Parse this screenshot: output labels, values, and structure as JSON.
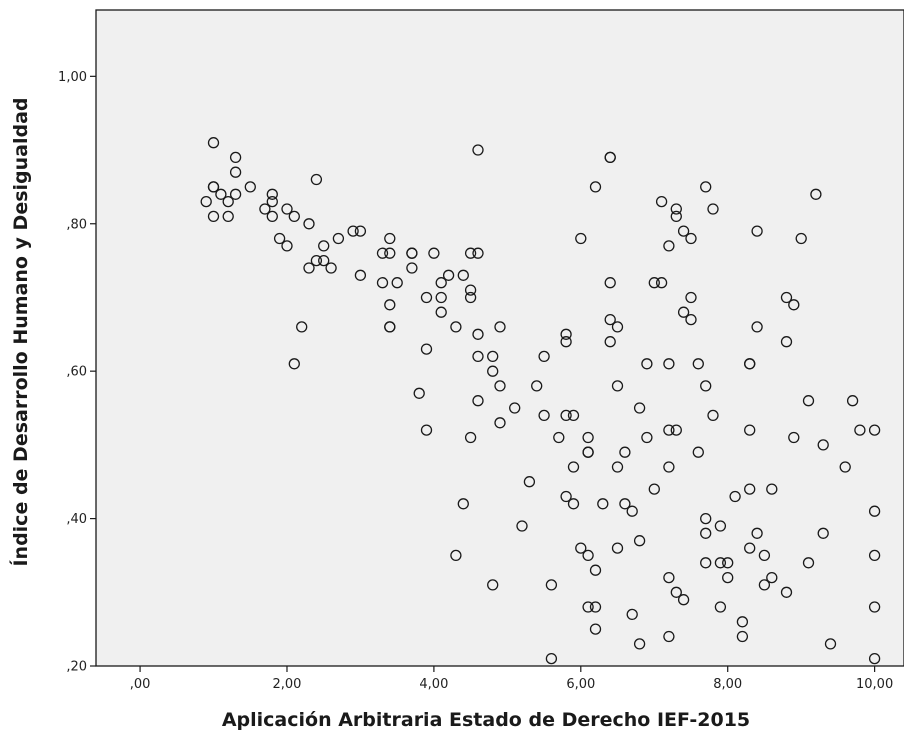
{
  "chart_data": {
    "type": "scatter",
    "xlabel": "Aplicación Arbitraria Estado de Derecho IEF-2015",
    "ylabel": "Índice de Desarrollo Humano y Desigualdad",
    "xlim": [
      -0.6,
      10.4
    ],
    "ylim": [
      0.2,
      1.09
    ],
    "x_ticks": [
      0,
      2,
      4,
      6,
      8,
      10
    ],
    "x_tick_labels": [
      ",00",
      "2,00",
      "4,00",
      "6,00",
      "8,00",
      "10,00"
    ],
    "y_ticks": [
      0.2,
      0.4,
      0.6,
      0.8,
      1.0
    ],
    "y_tick_labels": [
      ",20",
      ",40",
      ",60",
      ",80",
      "1,00"
    ],
    "background": "#f0f0f0",
    "marker_color": "#1a1a1a",
    "grid": false,
    "points": [
      [
        1.0,
        0.91
      ],
      [
        1.0,
        0.85
      ],
      [
        1.0,
        0.85
      ],
      [
        0.9,
        0.83
      ],
      [
        1.1,
        0.84
      ],
      [
        1.2,
        0.83
      ],
      [
        1.3,
        0.84
      ],
      [
        1.3,
        0.87
      ],
      [
        1.3,
        0.89
      ],
      [
        1.5,
        0.85
      ],
      [
        1.0,
        0.81
      ],
      [
        1.2,
        0.81
      ],
      [
        1.7,
        0.82
      ],
      [
        1.8,
        0.81
      ],
      [
        1.8,
        0.83
      ],
      [
        1.8,
        0.84
      ],
      [
        1.9,
        0.78
      ],
      [
        2.0,
        0.77
      ],
      [
        2.0,
        0.82
      ],
      [
        2.1,
        0.81
      ],
      [
        2.2,
        0.66
      ],
      [
        2.1,
        0.61
      ],
      [
        2.3,
        0.8
      ],
      [
        2.3,
        0.74
      ],
      [
        2.4,
        0.75
      ],
      [
        2.4,
        0.86
      ],
      [
        2.5,
        0.75
      ],
      [
        2.5,
        0.77
      ],
      [
        2.6,
        0.74
      ],
      [
        2.7,
        0.78
      ],
      [
        2.9,
        0.79
      ],
      [
        3.0,
        0.79
      ],
      [
        3.0,
        0.73
      ],
      [
        3.3,
        0.76
      ],
      [
        3.3,
        0.72
      ],
      [
        3.4,
        0.78
      ],
      [
        3.4,
        0.76
      ],
      [
        3.5,
        0.72
      ],
      [
        3.4,
        0.69
      ],
      [
        3.4,
        0.66
      ],
      [
        3.4,
        0.66
      ],
      [
        3.7,
        0.76
      ],
      [
        3.7,
        0.76
      ],
      [
        3.7,
        0.74
      ],
      [
        3.8,
        0.57
      ],
      [
        3.9,
        0.63
      ],
      [
        3.9,
        0.7
      ],
      [
        3.9,
        0.52
      ],
      [
        4.0,
        0.76
      ],
      [
        4.1,
        0.72
      ],
      [
        4.1,
        0.7
      ],
      [
        4.1,
        0.68
      ],
      [
        4.2,
        0.73
      ],
      [
        4.3,
        0.66
      ],
      [
        4.4,
        0.73
      ],
      [
        4.5,
        0.76
      ],
      [
        4.5,
        0.71
      ],
      [
        4.5,
        0.7
      ],
      [
        4.6,
        0.76
      ],
      [
        4.6,
        0.65
      ],
      [
        4.6,
        0.62
      ],
      [
        4.6,
        0.56
      ],
      [
        4.5,
        0.51
      ],
      [
        4.6,
        0.9
      ],
      [
        4.4,
        0.42
      ],
      [
        4.3,
        0.35
      ],
      [
        4.8,
        0.62
      ],
      [
        4.8,
        0.6
      ],
      [
        4.9,
        0.58
      ],
      [
        4.9,
        0.66
      ],
      [
        4.9,
        0.53
      ],
      [
        5.1,
        0.55
      ],
      [
        4.8,
        0.31
      ],
      [
        5.2,
        0.39
      ],
      [
        5.3,
        0.45
      ],
      [
        5.4,
        0.58
      ],
      [
        5.5,
        0.62
      ],
      [
        5.5,
        0.54
      ],
      [
        5.6,
        0.31
      ],
      [
        5.6,
        0.21
      ],
      [
        5.7,
        0.51
      ],
      [
        5.8,
        0.65
      ],
      [
        5.8,
        0.64
      ],
      [
        5.8,
        0.54
      ],
      [
        5.8,
        0.43
      ],
      [
        5.9,
        0.54
      ],
      [
        5.9,
        0.47
      ],
      [
        5.9,
        0.42
      ],
      [
        6.0,
        0.78
      ],
      [
        6.0,
        0.36
      ],
      [
        6.1,
        0.51
      ],
      [
        6.1,
        0.49
      ],
      [
        6.1,
        0.49
      ],
      [
        6.1,
        0.35
      ],
      [
        6.1,
        0.28
      ],
      [
        6.2,
        0.85
      ],
      [
        6.2,
        0.33
      ],
      [
        6.2,
        0.28
      ],
      [
        6.2,
        0.25
      ],
      [
        6.3,
        0.42
      ],
      [
        6.4,
        0.89
      ],
      [
        6.4,
        0.89
      ],
      [
        6.4,
        0.72
      ],
      [
        6.4,
        0.67
      ],
      [
        6.4,
        0.64
      ],
      [
        6.5,
        0.66
      ],
      [
        6.5,
        0.58
      ],
      [
        6.5,
        0.47
      ],
      [
        6.5,
        0.36
      ],
      [
        6.6,
        0.49
      ],
      [
        6.6,
        0.42
      ],
      [
        6.7,
        0.41
      ],
      [
        6.7,
        0.27
      ],
      [
        6.8,
        0.55
      ],
      [
        6.8,
        0.37
      ],
      [
        6.8,
        0.23
      ],
      [
        6.9,
        0.61
      ],
      [
        6.9,
        0.51
      ],
      [
        7.0,
        0.72
      ],
      [
        7.0,
        0.44
      ],
      [
        7.1,
        0.83
      ],
      [
        7.1,
        0.72
      ],
      [
        7.2,
        0.77
      ],
      [
        7.2,
        0.61
      ],
      [
        7.2,
        0.52
      ],
      [
        7.2,
        0.47
      ],
      [
        7.2,
        0.32
      ],
      [
        7.2,
        0.24
      ],
      [
        7.3,
        0.82
      ],
      [
        7.3,
        0.81
      ],
      [
        7.3,
        0.52
      ],
      [
        7.3,
        0.3
      ],
      [
        7.4,
        0.79
      ],
      [
        7.4,
        0.68
      ],
      [
        7.4,
        0.29
      ],
      [
        7.5,
        0.78
      ],
      [
        7.5,
        0.7
      ],
      [
        7.5,
        0.67
      ],
      [
        7.6,
        0.61
      ],
      [
        7.6,
        0.49
      ],
      [
        7.7,
        0.85
      ],
      [
        7.7,
        0.58
      ],
      [
        7.7,
        0.4
      ],
      [
        7.7,
        0.38
      ],
      [
        7.7,
        0.34
      ],
      [
        7.8,
        0.82
      ],
      [
        7.8,
        0.54
      ],
      [
        7.9,
        0.39
      ],
      [
        7.9,
        0.34
      ],
      [
        7.9,
        0.28
      ],
      [
        8.0,
        0.34
      ],
      [
        8.0,
        0.32
      ],
      [
        8.1,
        0.43
      ],
      [
        8.2,
        0.26
      ],
      [
        8.2,
        0.24
      ],
      [
        8.3,
        0.61
      ],
      [
        8.3,
        0.61
      ],
      [
        8.3,
        0.52
      ],
      [
        8.3,
        0.44
      ],
      [
        8.3,
        0.36
      ],
      [
        8.4,
        0.79
      ],
      [
        8.4,
        0.66
      ],
      [
        8.4,
        0.38
      ],
      [
        8.5,
        0.35
      ],
      [
        8.5,
        0.31
      ],
      [
        8.6,
        0.44
      ],
      [
        8.6,
        0.32
      ],
      [
        8.8,
        0.7
      ],
      [
        8.8,
        0.64
      ],
      [
        8.8,
        0.3
      ],
      [
        8.9,
        0.69
      ],
      [
        8.9,
        0.51
      ],
      [
        9.0,
        0.78
      ],
      [
        9.1,
        0.56
      ],
      [
        9.1,
        0.34
      ],
      [
        9.2,
        0.84
      ],
      [
        9.3,
        0.5
      ],
      [
        9.3,
        0.38
      ],
      [
        9.4,
        0.23
      ],
      [
        9.6,
        0.47
      ],
      [
        9.7,
        0.56
      ],
      [
        9.8,
        0.52
      ],
      [
        10.0,
        0.52
      ],
      [
        10.0,
        0.41
      ],
      [
        10.0,
        0.35
      ],
      [
        10.0,
        0.28
      ],
      [
        10.0,
        0.21
      ]
    ]
  }
}
